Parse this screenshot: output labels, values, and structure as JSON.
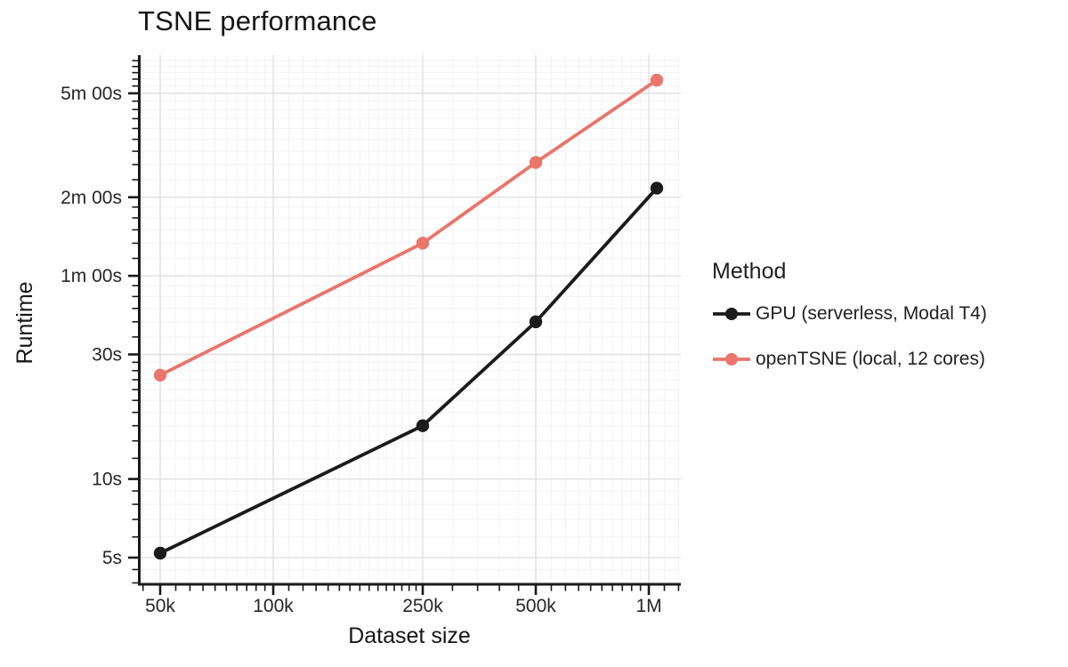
{
  "title": "TSNE performance",
  "colors": {
    "background": "#ffffff",
    "axis": "#1a1a1a",
    "grid_major": "#e3e3e3",
    "grid_minor": "#f4f4f4",
    "tick_label": "#262626",
    "title_text": "#161616",
    "legend_text": "#1f1f1f"
  },
  "chart_data": {
    "type": "line",
    "title": "TSNE performance",
    "xlabel": "Dataset size",
    "ylabel": "Runtime",
    "x_scale": "log",
    "y_scale": "log",
    "grid": true,
    "legend_title": "Method",
    "legend_position": "right",
    "xlim": [
      43500,
      1240000
    ],
    "ylim_seconds": [
      3.9,
      420
    ],
    "x_ticks": {
      "values": [
        50000,
        100000,
        250000,
        500000,
        1000000
      ],
      "labels": [
        "50k",
        "100k",
        "250k",
        "500k",
        "1M"
      ]
    },
    "x_minor_ticks": [
      45000,
      55000,
      60000,
      65000,
      70000,
      75000,
      80000,
      85000,
      90000,
      95000,
      110000,
      120000,
      130000,
      140000,
      150000,
      160000,
      170000,
      180000,
      190000,
      200000,
      210000,
      220000,
      230000,
      240000,
      300000,
      350000,
      400000,
      450000,
      550000,
      600000,
      650000,
      700000,
      750000,
      800000,
      850000,
      900000,
      950000,
      1100000,
      1200000
    ],
    "y_ticks": {
      "values": [
        5,
        10,
        30,
        60,
        120,
        300
      ],
      "labels": [
        "5s",
        "10s",
        "30s",
        "1m 00s",
        "2m 00s",
        "5m 00s"
      ]
    },
    "y_minor_ticks": [
      4,
      4.5,
      6,
      7,
      8,
      9,
      12,
      14,
      16,
      18,
      20,
      22,
      24,
      26,
      28,
      35,
      40,
      45,
      50,
      55,
      70,
      80,
      90,
      100,
      110,
      140,
      160,
      180,
      200,
      220,
      240,
      260,
      280,
      320,
      340,
      360,
      380,
      400
    ],
    "series": [
      {
        "name": "GPU (serverless, Modal T4)",
        "color": "#1b1b1b",
        "x": [
          50000,
          250000,
          500000,
          1050000
        ],
        "y_seconds": [
          5.2,
          16,
          40,
          130
        ]
      },
      {
        "name": "openTSNE (local, 12 cores)",
        "color": "#e9756b",
        "x": [
          50000,
          250000,
          500000,
          1050000
        ],
        "y_seconds": [
          25,
          80,
          163,
          337
        ]
      }
    ]
  }
}
